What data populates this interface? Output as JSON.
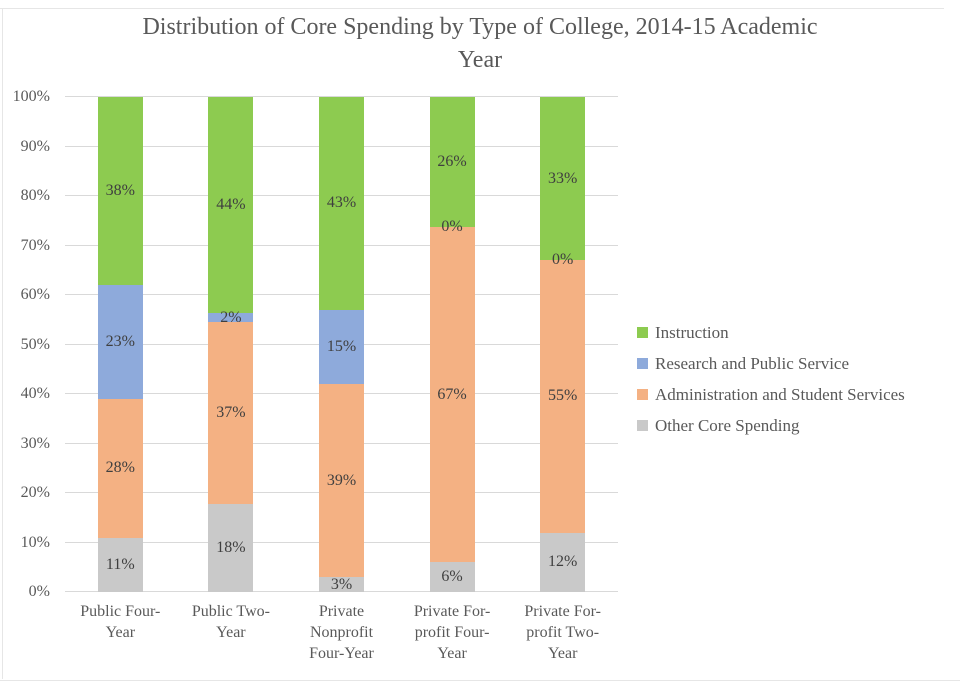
{
  "title": "Distribution of Core Spending by Type of College, 2014-15 Academic Year",
  "chart_data": {
    "type": "bar",
    "subtype": "stacked-100-percent-column",
    "title": "Distribution of Core Spending by Type of College, 2014-15 Academic Year",
    "categories": [
      "Public Four-Year",
      "Public Two-Year",
      "Private Nonprofit Four-Year",
      "Private For-profit Four-Year",
      "Private For-profit Two-Year"
    ],
    "category_label_lines": [
      [
        "Public Four-",
        "Year"
      ],
      [
        "Public Two-",
        "Year"
      ],
      [
        "Private",
        "Nonprofit",
        "Four-Year"
      ],
      [
        "Private For-",
        "profit Four-",
        "Year"
      ],
      [
        "Private For-",
        "profit Two-",
        "Year"
      ]
    ],
    "series_bottom_to_top": [
      {
        "name": "Other Core Spending",
        "color": "#c9c9c9",
        "values": [
          11,
          18,
          3,
          6,
          12
        ]
      },
      {
        "name": "Administration and Student Services",
        "color": "#f4b183",
        "values": [
          28,
          37,
          39,
          67,
          55
        ]
      },
      {
        "name": "Research and Public Service",
        "color": "#8eaadb",
        "values": [
          23,
          2,
          15,
          0,
          0
        ]
      },
      {
        "name": "Instruction",
        "color": "#8dcb50",
        "values": [
          38,
          44,
          43,
          26,
          33
        ]
      }
    ],
    "legend_order_top_to_bottom": [
      "Instruction",
      "Research and Public Service",
      "Administration and Student Services",
      "Other Core Spending"
    ],
    "data_label_suffix": "%",
    "y_ticks": [
      "0%",
      "10%",
      "20%",
      "30%",
      "40%",
      "50%",
      "60%",
      "70%",
      "80%",
      "90%",
      "100%"
    ],
    "ylim": [
      0,
      100
    ],
    "xlabel": "",
    "ylabel": "",
    "grid": "horizontal",
    "gridline_color": "#d9d9d9",
    "legend_position": "right",
    "axis_text_color": "#595959",
    "data_label_color": "#3f3f3f",
    "title_color": "#595959"
  }
}
